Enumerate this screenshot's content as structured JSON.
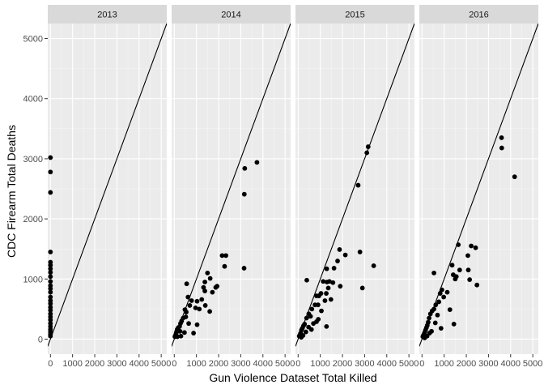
{
  "chart_data": {
    "type": "scatter",
    "facet_labels": [
      "2013",
      "2014",
      "2015",
      "2016"
    ],
    "xlabel": "Gun Violence Dataset Total Killed",
    "ylabel": "CDC Firearm Total Deaths",
    "x_ticks": [
      0,
      1000,
      2000,
      3000,
      4000,
      5000
    ],
    "x_tick_labels": [
      "0",
      "1000",
      "2000",
      "3000",
      "4000",
      "5000"
    ],
    "y_ticks": [
      0,
      1000,
      2000,
      3000,
      4000,
      5000
    ],
    "y_tick_labels": [
      "0",
      "1000",
      "2000",
      "3000",
      "4000",
      "5000"
    ],
    "xlim": [
      -120,
      5250
    ],
    "ylim": [
      -250,
      5250
    ],
    "reference_line": {
      "intercept": 0,
      "slope": 1.0
    },
    "grid": true,
    "point_color": "#000000",
    "panel_bg": "#ebebeb",
    "strip_bg": "#d9d9d9",
    "panels": [
      {
        "label": "2013",
        "points": [
          [
            2,
            3020
          ],
          [
            2,
            2780
          ],
          [
            2,
            2440
          ],
          [
            2,
            1450
          ],
          [
            2,
            1280
          ],
          [
            2,
            1230
          ],
          [
            2,
            1170
          ],
          [
            2,
            1110
          ],
          [
            2,
            1040
          ],
          [
            2,
            960
          ],
          [
            2,
            890
          ],
          [
            2,
            840
          ],
          [
            2,
            780
          ],
          [
            2,
            700
          ],
          [
            2,
            640
          ],
          [
            2,
            590
          ],
          [
            2,
            530
          ],
          [
            2,
            480
          ],
          [
            2,
            420
          ],
          [
            2,
            370
          ],
          [
            2,
            320
          ],
          [
            2,
            260
          ],
          [
            2,
            210
          ],
          [
            2,
            160
          ],
          [
            2,
            120
          ],
          [
            2,
            80
          ],
          [
            2,
            50
          ]
        ]
      },
      {
        "label": "2014",
        "points": [
          [
            3730,
            2940
          ],
          [
            3180,
            2840
          ],
          [
            3160,
            2410
          ],
          [
            3150,
            1180
          ],
          [
            2330,
            1390
          ],
          [
            2160,
            1390
          ],
          [
            2270,
            1210
          ],
          [
            1930,
            880
          ],
          [
            1870,
            860
          ],
          [
            1500,
            1100
          ],
          [
            1620,
            1010
          ],
          [
            1380,
            950
          ],
          [
            1320,
            860
          ],
          [
            1380,
            800
          ],
          [
            1720,
            780
          ],
          [
            1240,
            660
          ],
          [
            1030,
            630
          ],
          [
            1400,
            560
          ],
          [
            1600,
            460
          ],
          [
            1130,
            500
          ],
          [
            960,
            520
          ],
          [
            780,
            640
          ],
          [
            560,
            920
          ],
          [
            620,
            700
          ],
          [
            700,
            560
          ],
          [
            480,
            490
          ],
          [
            540,
            450
          ],
          [
            400,
            350
          ],
          [
            330,
            300
          ],
          [
            280,
            260
          ],
          [
            240,
            210
          ],
          [
            180,
            190
          ],
          [
            130,
            160
          ],
          [
            100,
            120
          ],
          [
            80,
            90
          ],
          [
            50,
            60
          ],
          [
            30,
            40
          ],
          [
            260,
            130
          ],
          [
            460,
            110
          ],
          [
            650,
            260
          ],
          [
            520,
            370
          ],
          [
            870,
            100
          ],
          [
            1030,
            240
          ],
          [
            140,
            40
          ],
          [
            300,
            50
          ]
        ]
      },
      {
        "label": "2015",
        "points": [
          [
            3160,
            3200
          ],
          [
            3100,
            3100
          ],
          [
            2710,
            2560
          ],
          [
            1870,
            1490
          ],
          [
            2130,
            1400
          ],
          [
            2790,
            1450
          ],
          [
            3410,
            1220
          ],
          [
            2900,
            850
          ],
          [
            1780,
            1300
          ],
          [
            1620,
            1180
          ],
          [
            1290,
            1170
          ],
          [
            1410,
            960
          ],
          [
            1300,
            950
          ],
          [
            1570,
            940
          ],
          [
            1130,
            960
          ],
          [
            1900,
            880
          ],
          [
            1360,
            850
          ],
          [
            1270,
            760
          ],
          [
            1030,
            760
          ],
          [
            940,
            720
          ],
          [
            830,
            720
          ],
          [
            390,
            980
          ],
          [
            1480,
            660
          ],
          [
            1210,
            640
          ],
          [
            900,
            570
          ],
          [
            760,
            570
          ],
          [
            1050,
            470
          ],
          [
            620,
            500
          ],
          [
            560,
            380
          ],
          [
            480,
            420
          ],
          [
            380,
            350
          ],
          [
            290,
            250
          ],
          [
            240,
            220
          ],
          [
            190,
            180
          ],
          [
            150,
            150
          ],
          [
            110,
            100
          ],
          [
            80,
            70
          ],
          [
            50,
            50
          ],
          [
            350,
            120
          ],
          [
            470,
            200
          ],
          [
            690,
            260
          ],
          [
            830,
            290
          ],
          [
            1280,
            210
          ],
          [
            910,
            330
          ],
          [
            600,
            160
          ],
          [
            220,
            60
          ],
          [
            140,
            30
          ]
        ]
      },
      {
        "label": "2016",
        "points": [
          [
            3590,
            3350
          ],
          [
            3600,
            3180
          ],
          [
            4180,
            2700
          ],
          [
            1640,
            1570
          ],
          [
            2220,
            1550
          ],
          [
            2420,
            1520
          ],
          [
            2070,
            1390
          ],
          [
            1360,
            1230
          ],
          [
            2090,
            1150
          ],
          [
            1700,
            1150
          ],
          [
            1410,
            1070
          ],
          [
            1550,
            1040
          ],
          [
            2480,
            900
          ],
          [
            2150,
            990
          ],
          [
            540,
            1100
          ],
          [
            1500,
            1000
          ],
          [
            1140,
            780
          ],
          [
            900,
            820
          ],
          [
            820,
            760
          ],
          [
            980,
            700
          ],
          [
            760,
            620
          ],
          [
            620,
            570
          ],
          [
            1260,
            490
          ],
          [
            540,
            500
          ],
          [
            460,
            470
          ],
          [
            380,
            420
          ],
          [
            320,
            350
          ],
          [
            280,
            280
          ],
          [
            240,
            230
          ],
          [
            200,
            190
          ],
          [
            160,
            150
          ],
          [
            120,
            110
          ],
          [
            90,
            80
          ],
          [
            60,
            60
          ],
          [
            40,
            40
          ],
          [
            700,
            400
          ],
          [
            860,
            180
          ],
          [
            430,
            130
          ],
          [
            1440,
            250
          ],
          [
            600,
            270
          ],
          [
            340,
            100
          ],
          [
            230,
            50
          ],
          [
            120,
            20
          ]
        ]
      }
    ]
  }
}
